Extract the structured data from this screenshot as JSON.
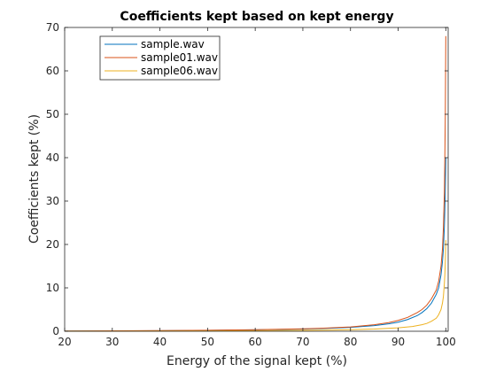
{
  "chart_data": {
    "type": "line",
    "title": "Coefficients kept based on kept energy",
    "xlabel": "Energy of the signal kept (%)",
    "ylabel": "Coefficients kept (%)",
    "xlim": [
      20,
      100.5
    ],
    "ylim": [
      0,
      70
    ],
    "xticks": [
      "20",
      "30",
      "40",
      "50",
      "60",
      "70",
      "80",
      "90",
      "100"
    ],
    "yticks": [
      "0",
      "10",
      "20",
      "30",
      "40",
      "50",
      "60",
      "70"
    ],
    "grid": false,
    "legend_position": "top-left",
    "series": [
      {
        "name": "sample.wav",
        "color": "#0072BD",
        "x": [
          20,
          30,
          40,
          50,
          60,
          70,
          75,
          80,
          85,
          88,
          90,
          92,
          94,
          95,
          96,
          97,
          98,
          98.5,
          99,
          99.3,
          99.5,
          99.7,
          99.8,
          99.9,
          100
        ],
        "y": [
          0.05,
          0.08,
          0.12,
          0.2,
          0.32,
          0.5,
          0.65,
          0.9,
          1.3,
          1.7,
          2.1,
          2.7,
          3.6,
          4.3,
          5.2,
          6.5,
          8.5,
          10,
          13,
          16,
          19,
          24,
          28,
          33,
          40
        ]
      },
      {
        "name": "sample01.wav",
        "color": "#D95319",
        "x": [
          20,
          30,
          40,
          50,
          60,
          70,
          75,
          80,
          85,
          88,
          90,
          92,
          94,
          95,
          96,
          97,
          98,
          98.5,
          99,
          99.3,
          99.5,
          99.7,
          99.8,
          99.9,
          100
        ],
        "y": [
          0.05,
          0.09,
          0.14,
          0.22,
          0.36,
          0.55,
          0.75,
          1.0,
          1.5,
          2.0,
          2.5,
          3.2,
          4.3,
          5.0,
          6.0,
          7.5,
          9.5,
          11.5,
          15,
          19,
          24,
          32,
          40,
          50,
          68
        ]
      },
      {
        "name": "sample06.wav",
        "color": "#EDB120",
        "x": [
          20,
          30,
          40,
          50,
          60,
          70,
          80,
          85,
          90,
          93,
          95,
          96,
          97,
          98,
          98.5,
          99,
          99.3,
          99.5,
          99.7,
          99.8,
          99.9,
          100
        ],
        "y": [
          0.02,
          0.03,
          0.05,
          0.08,
          0.12,
          0.2,
          0.35,
          0.5,
          0.8,
          1.1,
          1.5,
          1.8,
          2.3,
          3.0,
          3.8,
          5.0,
          6.5,
          8.0,
          11,
          13,
          16,
          21
        ]
      }
    ]
  }
}
